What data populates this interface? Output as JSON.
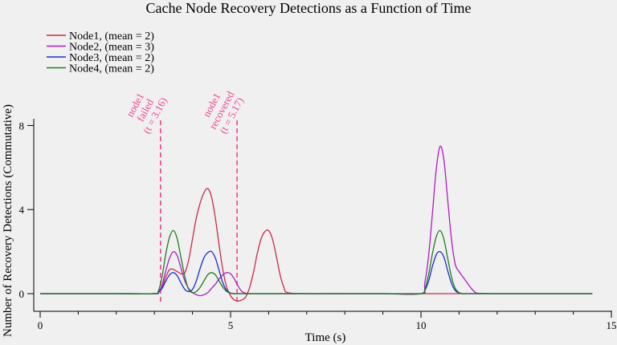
{
  "chart_data": {
    "type": "line",
    "title": "Cache Node Recovery Detections as a Function of Time",
    "xlabel": "Time (s)",
    "ylabel": "Number of Recovery Detections (Commutative)",
    "xlim": [
      0,
      15
    ],
    "ylim": [
      -0.6,
      8.5
    ],
    "xticks": [
      0,
      5,
      10,
      15
    ],
    "xtick_labels": [
      "0",
      "5",
      "10",
      "15"
    ],
    "xminor": [
      1,
      2,
      3,
      4,
      6,
      7,
      8,
      9,
      11,
      12,
      13,
      14
    ],
    "yticks": [
      0,
      4,
      8
    ],
    "ytick_labels": [
      "0",
      "4",
      "8"
    ],
    "grid": false,
    "legend_position": "top-left",
    "x": [
      0.0,
      1.0,
      2.0,
      3.0,
      3.1,
      3.2,
      3.3,
      3.4,
      3.5,
      3.6,
      3.7,
      3.8,
      3.9,
      4.0,
      4.1,
      4.2,
      4.3,
      4.4,
      4.5,
      4.6,
      4.7,
      4.8,
      4.9,
      5.0,
      5.1,
      5.2,
      5.3,
      5.4,
      5.5,
      5.6,
      5.7,
      5.8,
      5.9,
      6.0,
      6.1,
      6.2,
      6.3,
      6.4,
      6.5,
      7.0,
      8.0,
      9.0,
      10.0,
      10.1,
      10.2,
      10.3,
      10.4,
      10.5,
      10.6,
      10.7,
      10.8,
      10.9,
      11.0,
      11.1,
      11.2,
      11.3,
      11.4,
      11.5,
      12.0,
      13.0,
      14.0,
      14.5
    ],
    "series": [
      {
        "name": "Node1, (mean = 2)",
        "color": "#cc2a4a",
        "values": [
          0,
          0,
          0,
          0,
          0.05,
          0.3,
          0.8,
          1.15,
          1.15,
          1.05,
          0.95,
          1.0,
          1.6,
          2.6,
          3.6,
          4.3,
          4.8,
          5.0,
          4.6,
          3.6,
          2.3,
          1.1,
          0.3,
          -0.1,
          -0.3,
          -0.35,
          -0.3,
          -0.15,
          0.3,
          1.0,
          1.9,
          2.6,
          2.95,
          3.0,
          2.6,
          1.8,
          0.9,
          0.3,
          0.05,
          0,
          0,
          0,
          0,
          0,
          0,
          0,
          0,
          0,
          0,
          0,
          0,
          0,
          0,
          0,
          0,
          0,
          0,
          0,
          0,
          0,
          0,
          0
        ]
      },
      {
        "name": "Node2, (mean = 3)",
        "color": "#b01cc0",
        "values": [
          0,
          0,
          0,
          0,
          0.05,
          0.4,
          1.1,
          1.7,
          2.0,
          1.8,
          1.2,
          0.6,
          0.25,
          0.05,
          -0.05,
          -0.1,
          -0.05,
          0.05,
          0.25,
          0.45,
          0.7,
          0.9,
          1.0,
          0.95,
          0.7,
          0.35,
          0.1,
          0.02,
          0,
          0,
          0,
          0,
          0,
          0,
          0,
          0,
          0,
          0,
          0,
          0,
          0,
          0,
          0,
          0.5,
          1.8,
          3.8,
          5.9,
          7.0,
          6.4,
          4.5,
          2.6,
          1.4,
          1.05,
          0.8,
          0.55,
          0.3,
          0.1,
          0.02,
          0,
          0,
          0,
          0
        ]
      },
      {
        "name": "Node3, (mean = 2)",
        "color": "#1a2fd0",
        "values": [
          0,
          0,
          0,
          0,
          0.05,
          0.25,
          0.6,
          0.9,
          1.0,
          0.85,
          0.5,
          0.2,
          0.1,
          0.2,
          0.6,
          1.2,
          1.7,
          1.95,
          2.0,
          1.7,
          1.1,
          0.5,
          0.15,
          0.03,
          0,
          0,
          0,
          0,
          0,
          0,
          0,
          0,
          0,
          0,
          0,
          0,
          0,
          0,
          0,
          0,
          0,
          0,
          0,
          0.15,
          0.6,
          1.3,
          1.85,
          2.0,
          1.75,
          1.1,
          0.5,
          0.15,
          0.03,
          0,
          0,
          0,
          0,
          0,
          0,
          0,
          0,
          0
        ]
      },
      {
        "name": "Node4, (mean = 2)",
        "color": "#1e7d1e",
        "values": [
          0,
          0,
          0,
          0,
          0.1,
          0.8,
          1.9,
          2.7,
          3.0,
          2.6,
          1.7,
          0.8,
          0.2,
          0.05,
          0.1,
          0.3,
          0.6,
          0.9,
          1.0,
          0.9,
          0.6,
          0.3,
          0.1,
          0.02,
          0,
          0,
          0,
          0,
          0,
          0,
          0,
          0,
          0,
          0,
          0,
          0,
          0,
          0,
          0,
          0,
          0,
          0,
          0,
          0.2,
          0.9,
          1.9,
          2.7,
          3.0,
          2.6,
          1.7,
          0.8,
          0.25,
          0.05,
          0,
          0,
          0,
          0,
          0,
          0,
          0,
          0,
          0
        ]
      }
    ],
    "annotations": [
      {
        "x": 3.16,
        "lines": [
          "node1",
          "failed",
          "(t = 3.16)"
        ],
        "color": "#f0448c",
        "style": "dashed"
      },
      {
        "x": 5.17,
        "lines": [
          "node1",
          "recovered",
          "(t = 5.17)"
        ],
        "color": "#f0448c",
        "style": "dashed"
      }
    ]
  }
}
